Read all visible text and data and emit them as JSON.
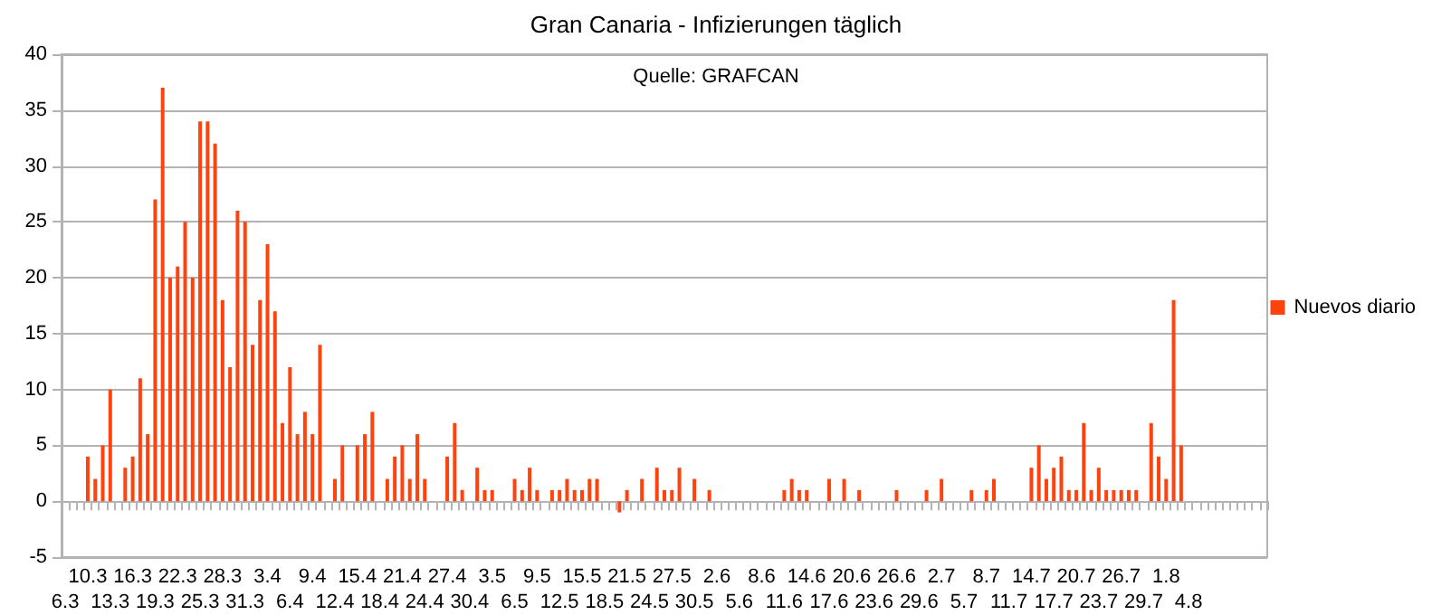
{
  "chart_data": {
    "type": "bar",
    "title": "Gran Canaria - Infizierungen täglich",
    "annotations": [
      "Quelle: GRAFCAN"
    ],
    "categories": [
      "6.3",
      null,
      null,
      "10.3",
      null,
      null,
      "13.3",
      null,
      null,
      "16.3",
      null,
      null,
      "19.3",
      null,
      null,
      "22.3",
      null,
      null,
      "25.3",
      null,
      null,
      "28.3",
      null,
      null,
      "31.3",
      null,
      null,
      "3.4",
      null,
      null,
      "6.4",
      null,
      null,
      "9.4",
      null,
      null,
      "12.4",
      null,
      null,
      "15.4",
      null,
      null,
      "18.4",
      null,
      null,
      "21.4",
      null,
      null,
      "24.4",
      null,
      null,
      "27.4",
      null,
      null,
      "30.4",
      null,
      null,
      "3.5",
      null,
      null,
      "6.5",
      null,
      null,
      "9.5",
      null,
      null,
      "12.5",
      null,
      null,
      "15.5",
      null,
      null,
      "18.5",
      null,
      null,
      "21.5",
      null,
      null,
      "24.5",
      null,
      null,
      "27.5",
      null,
      null,
      "30.5",
      null,
      null,
      "2.6",
      null,
      null,
      "5.6",
      null,
      null,
      "8.6",
      null,
      null,
      "11.6",
      null,
      null,
      "14.6",
      null,
      null,
      "17.6",
      null,
      null,
      "20.6",
      null,
      null,
      "23.6",
      null,
      null,
      "26.6",
      null,
      null,
      "29.6",
      null,
      null,
      "2.7",
      null,
      null,
      "5.7",
      null,
      null,
      "8.7",
      null,
      null,
      "11.7",
      null,
      null,
      "14.7",
      null,
      null,
      "17.7",
      null,
      null,
      "20.7",
      null,
      null,
      "23.7",
      null,
      null,
      "26.7",
      null,
      null,
      "29.7",
      null,
      null,
      "1.8",
      null,
      null,
      "4.8",
      null,
      null,
      null,
      null,
      null,
      null,
      null,
      null,
      null,
      null
    ],
    "series": [
      {
        "name": "Nuevos diario",
        "color": "#ff420e",
        "values": [
          0,
          0,
          0,
          4,
          2,
          5,
          10,
          0,
          3,
          4,
          11,
          6,
          27,
          37,
          20,
          21,
          25,
          20,
          34,
          34,
          32,
          18,
          12,
          26,
          25,
          14,
          18,
          23,
          17,
          7,
          12,
          6,
          8,
          6,
          14,
          0,
          2,
          5,
          0,
          5,
          6,
          8,
          0,
          2,
          4,
          5,
          2,
          6,
          2,
          0,
          0,
          4,
          7,
          1,
          0,
          3,
          1,
          1,
          0,
          0,
          2,
          1,
          3,
          1,
          0,
          1,
          1,
          2,
          1,
          1,
          2,
          2,
          0,
          0,
          -1,
          1,
          0,
          2,
          0,
          3,
          1,
          1,
          3,
          0,
          2,
          0,
          1,
          0,
          0,
          0,
          0,
          0,
          0,
          0,
          0,
          0,
          1,
          2,
          1,
          1,
          0,
          0,
          2,
          0,
          2,
          0,
          1,
          0,
          0,
          0,
          0,
          1,
          0,
          0,
          0,
          1,
          0,
          2,
          0,
          0,
          0,
          1,
          0,
          1,
          2,
          0,
          0,
          0,
          0,
          3,
          5,
          2,
          3,
          4,
          1,
          1,
          7,
          1,
          3,
          1,
          1,
          1,
          1,
          1,
          0,
          7,
          4,
          2,
          18,
          5,
          null,
          null,
          null,
          null,
          null,
          null,
          null,
          null,
          null,
          null,
          null
        ]
      }
    ],
    "ylim": [
      -5,
      40
    ],
    "yticks": [
      -5,
      0,
      5,
      10,
      15,
      20,
      25,
      30,
      35,
      40
    ],
    "grid": "y",
    "legend": "right"
  }
}
